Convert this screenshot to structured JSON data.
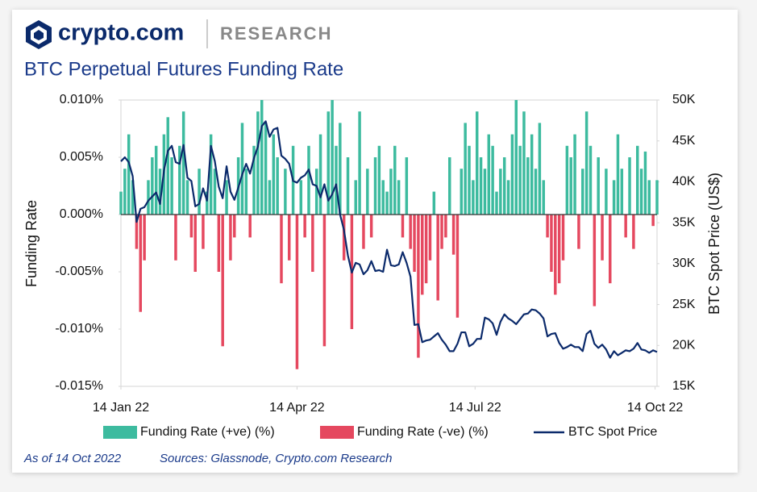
{
  "header": {
    "brand": "crypto.com",
    "section": "RESEARCH"
  },
  "footer": {
    "as_of": "As of 14 Oct 2022",
    "sources": "Sources: Glassnode, Crypto.com Research"
  },
  "chart_data": {
    "type": "bar",
    "title": "BTC Perpetual Futures Funding Rate",
    "ylabel": "Funding Rate",
    "y2label": "BTC Spot Price (US$)",
    "xlim": [
      "2022-01-14",
      "2022-10-15"
    ],
    "xticks": [
      {
        "value": "2022-01-14",
        "label": "14 Jan 22"
      },
      {
        "value": "2022-04-14",
        "label": "14 Apr 22"
      },
      {
        "value": "2022-07-14",
        "label": "14 Jul 22"
      },
      {
        "value": "2022-10-14",
        "label": "14 Oct 22"
      }
    ],
    "ylim": [
      -0.015,
      0.01
    ],
    "yticks": [
      {
        "value": 0.01,
        "label": "0.010%"
      },
      {
        "value": 0.005,
        "label": "0.005%"
      },
      {
        "value": 0,
        "label": "0.000%"
      },
      {
        "value": -0.005,
        "label": "-0.005%"
      },
      {
        "value": -0.01,
        "label": "-0.010%"
      },
      {
        "value": -0.015,
        "label": "-0.015%"
      }
    ],
    "y2lim": [
      15000,
      50000
    ],
    "y2ticks": [
      {
        "value": 50000,
        "label": "50K"
      },
      {
        "value": 45000,
        "label": "45K"
      },
      {
        "value": 40000,
        "label": "40K"
      },
      {
        "value": 35000,
        "label": "35K"
      },
      {
        "value": 30000,
        "label": "30K"
      },
      {
        "value": 25000,
        "label": "25K"
      },
      {
        "value": 20000,
        "label": "20K"
      },
      {
        "value": 15000,
        "label": "15K"
      }
    ],
    "x": [
      "2022-01-14",
      "2022-01-16",
      "2022-01-18",
      "2022-01-20",
      "2022-01-22",
      "2022-01-24",
      "2022-01-26",
      "2022-01-28",
      "2022-01-30",
      "2022-02-01",
      "2022-02-03",
      "2022-02-05",
      "2022-02-07",
      "2022-02-09",
      "2022-02-11",
      "2022-02-13",
      "2022-02-15",
      "2022-02-17",
      "2022-02-19",
      "2022-02-21",
      "2022-02-23",
      "2022-02-25",
      "2022-02-27",
      "2022-03-01",
      "2022-03-03",
      "2022-03-05",
      "2022-03-07",
      "2022-03-09",
      "2022-03-11",
      "2022-03-13",
      "2022-03-15",
      "2022-03-17",
      "2022-03-19",
      "2022-03-21",
      "2022-03-23",
      "2022-03-25",
      "2022-03-27",
      "2022-03-29",
      "2022-03-31",
      "2022-04-02",
      "2022-04-04",
      "2022-04-06",
      "2022-04-08",
      "2022-04-10",
      "2022-04-12",
      "2022-04-14",
      "2022-04-16",
      "2022-04-18",
      "2022-04-20",
      "2022-04-22",
      "2022-04-24",
      "2022-04-26",
      "2022-04-28",
      "2022-04-30",
      "2022-05-02",
      "2022-05-04",
      "2022-05-06",
      "2022-05-08",
      "2022-05-10",
      "2022-05-12",
      "2022-05-14",
      "2022-05-16",
      "2022-05-18",
      "2022-05-20",
      "2022-05-22",
      "2022-05-24",
      "2022-05-26",
      "2022-05-28",
      "2022-05-30",
      "2022-06-01",
      "2022-06-03",
      "2022-06-05",
      "2022-06-07",
      "2022-06-09",
      "2022-06-11",
      "2022-06-13",
      "2022-06-15",
      "2022-06-17",
      "2022-06-19",
      "2022-06-21",
      "2022-06-23",
      "2022-06-25",
      "2022-06-27",
      "2022-06-29",
      "2022-07-01",
      "2022-07-03",
      "2022-07-05",
      "2022-07-07",
      "2022-07-09",
      "2022-07-11",
      "2022-07-13",
      "2022-07-15",
      "2022-07-17",
      "2022-07-19",
      "2022-07-21",
      "2022-07-23",
      "2022-07-25",
      "2022-07-27",
      "2022-07-29",
      "2022-07-31",
      "2022-08-02",
      "2022-08-04",
      "2022-08-06",
      "2022-08-08",
      "2022-08-10",
      "2022-08-12",
      "2022-08-14",
      "2022-08-16",
      "2022-08-18",
      "2022-08-20",
      "2022-08-22",
      "2022-08-24",
      "2022-08-26",
      "2022-08-28",
      "2022-08-30",
      "2022-09-01",
      "2022-09-03",
      "2022-09-05",
      "2022-09-07",
      "2022-09-09",
      "2022-09-11",
      "2022-09-13",
      "2022-09-15",
      "2022-09-17",
      "2022-09-19",
      "2022-09-21",
      "2022-09-23",
      "2022-09-25",
      "2022-09-27",
      "2022-09-29",
      "2022-10-01",
      "2022-10-03",
      "2022-10-05",
      "2022-10-07",
      "2022-10-09",
      "2022-10-11",
      "2022-10-13",
      "2022-10-15"
    ],
    "series": [
      {
        "name": "Funding Rate (+ve) (%)",
        "color": "#3dbb9f",
        "values": [
          0.002,
          0.004,
          0.007,
          0.003,
          null,
          null,
          null,
          0.003,
          0.005,
          0.006,
          0.004,
          0.007,
          0.0085,
          0.005,
          null,
          0.006,
          0.009,
          0.003,
          null,
          null,
          0.004,
          null,
          0.002,
          0.007,
          0.004,
          null,
          null,
          0.003,
          null,
          null,
          0.005,
          0.008,
          0.004,
          null,
          0.006,
          0.009,
          0.01,
          0.008,
          0.003,
          0.007,
          0.005,
          null,
          0.004,
          null,
          0.006,
          null,
          0.003,
          null,
          0.006,
          null,
          0.004,
          0.007,
          null,
          0.009,
          0.01,
          0.006,
          0.008,
          null,
          0.005,
          null,
          0.003,
          0.009,
          null,
          0.004,
          null,
          0.005,
          0.006,
          0.003,
          0.002,
          0.004,
          0.006,
          0.003,
          null,
          0.005,
          null,
          null,
          null,
          null,
          null,
          null,
          0.002,
          null,
          null,
          null,
          0.005,
          null,
          null,
          0.004,
          0.008,
          0.006,
          0.003,
          0.009,
          0.005,
          0.004,
          0.007,
          0.006,
          0.002,
          0.004,
          0.005,
          0.003,
          0.007,
          0.01,
          0.006,
          0.009,
          0.005,
          0.007,
          0.004,
          0.008,
          0.003,
          null,
          null,
          null,
          null,
          null,
          0.006,
          0.005,
          0.007,
          null,
          0.004,
          0.009,
          0.006,
          null,
          0.005,
          null,
          0.004,
          null,
          0.003,
          0.007,
          0.004,
          null,
          0.005,
          null,
          0.006,
          0.004,
          0.0055,
          0.003,
          null,
          0.003
        ]
      },
      {
        "name": "Funding Rate (-ve) (%)",
        "color": "#e5485f",
        "values": [
          null,
          null,
          null,
          null,
          -0.003,
          -0.0085,
          -0.004,
          null,
          null,
          null,
          null,
          null,
          null,
          null,
          -0.004,
          null,
          null,
          null,
          -0.002,
          -0.005,
          null,
          -0.003,
          null,
          null,
          null,
          -0.005,
          -0.0115,
          null,
          -0.004,
          -0.002,
          null,
          null,
          null,
          -0.002,
          null,
          null,
          null,
          null,
          null,
          null,
          null,
          -0.006,
          null,
          -0.004,
          null,
          -0.0135,
          null,
          -0.002,
          null,
          -0.005,
          null,
          null,
          -0.0115,
          null,
          null,
          null,
          null,
          -0.004,
          null,
          -0.01,
          null,
          null,
          -0.003,
          null,
          -0.002,
          null,
          null,
          null,
          null,
          null,
          null,
          null,
          -0.002,
          null,
          -0.003,
          -0.005,
          -0.0125,
          -0.007,
          -0.006,
          -0.004,
          null,
          -0.0075,
          -0.003,
          -0.002,
          null,
          -0.0035,
          -0.009,
          null,
          null,
          null,
          null,
          null,
          null,
          null,
          null,
          null,
          null,
          null,
          null,
          null,
          null,
          null,
          null,
          null,
          null,
          null,
          null,
          null,
          null,
          -0.002,
          -0.005,
          -0.007,
          -0.006,
          -0.004,
          null,
          null,
          null,
          -0.003,
          null,
          null,
          null,
          -0.008,
          null,
          -0.004,
          null,
          -0.006,
          null,
          null,
          null,
          -0.002,
          null,
          -0.003,
          null,
          null,
          null,
          null,
          -0.001,
          null
        ]
      },
      {
        "name": "BTC Spot Price",
        "color": "#0b2a6b",
        "type": "line",
        "axis": "y2",
        "values": [
          42500,
          43000,
          42400,
          40700,
          35100,
          36700,
          36900,
          37700,
          38200,
          38700,
          37300,
          41400,
          43800,
          44400,
          42400,
          42200,
          44500,
          40500,
          40100,
          37000,
          37300,
          39200,
          37700,
          44400,
          42500,
          39400,
          38000,
          41900,
          38800,
          37800,
          39300,
          40900,
          42200,
          41000,
          42900,
          44300,
          46800,
          47400,
          45500,
          46400,
          46600,
          43200,
          42800,
          42200,
          40100,
          39900,
          40500,
          40800,
          41500,
          39700,
          39500,
          38100,
          39700,
          37700,
          38500,
          39700,
          36000,
          34100,
          31000,
          28900,
          30100,
          29900,
          28700,
          29200,
          30300,
          29100,
          29200,
          29000,
          31700,
          29800,
          29700,
          29900,
          31400,
          30100,
          28400,
          22500,
          22600,
          20400,
          20600,
          20700,
          21100,
          21500,
          20700,
          20100,
          19300,
          19300,
          20200,
          21600,
          21600,
          19900,
          20200,
          20800,
          20800,
          23400,
          23200,
          22700,
          21300,
          22900,
          23800,
          23300,
          23000,
          22600,
          23200,
          23800,
          23900,
          24400,
          24300,
          23900,
          23300,
          21100,
          21400,
          21500,
          20300,
          19600,
          19800,
          20100,
          19800,
          19800,
          19300,
          21400,
          21800,
          20200,
          19700,
          20100,
          19500,
          18500,
          19300,
          18800,
          19100,
          19400,
          19300,
          19600,
          20300,
          19500,
          19400,
          19100,
          19400,
          19200
        ]
      }
    ]
  }
}
